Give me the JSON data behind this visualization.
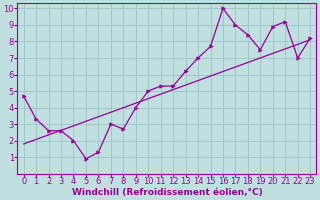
{
  "xlabel": "Windchill (Refroidissement éolien,°C)",
  "bg_color": "#c0e0e0",
  "line_color": "#990099",
  "xlim": [
    -0.5,
    23.5
  ],
  "ylim": [
    0,
    10.3
  ],
  "xticks": [
    0,
    1,
    2,
    3,
    4,
    5,
    6,
    7,
    8,
    9,
    10,
    11,
    12,
    13,
    14,
    15,
    16,
    17,
    18,
    19,
    20,
    21,
    22,
    23
  ],
  "yticks": [
    1,
    2,
    3,
    4,
    5,
    6,
    7,
    8,
    9,
    10
  ],
  "data_x": [
    0,
    1,
    2,
    3,
    4,
    5,
    6,
    7,
    8,
    9,
    10,
    11,
    12,
    13,
    14,
    15,
    16,
    17,
    18,
    19,
    20,
    21,
    22,
    23
  ],
  "data_y": [
    4.7,
    3.3,
    2.6,
    2.6,
    2.0,
    0.9,
    1.3,
    3.0,
    2.7,
    4.0,
    5.0,
    5.3,
    5.3,
    6.2,
    7.0,
    7.7,
    10.0,
    9.0,
    8.4,
    7.5,
    8.9,
    9.2,
    7.0,
    8.2
  ],
  "trend_x": [
    0,
    23
  ],
  "trend_y": [
    1.8,
    8.1
  ],
  "grid_color": "#a0c8c8",
  "font_color": "#990099",
  "xlabel_fontsize": 6.5,
  "tick_fontsize": 6
}
